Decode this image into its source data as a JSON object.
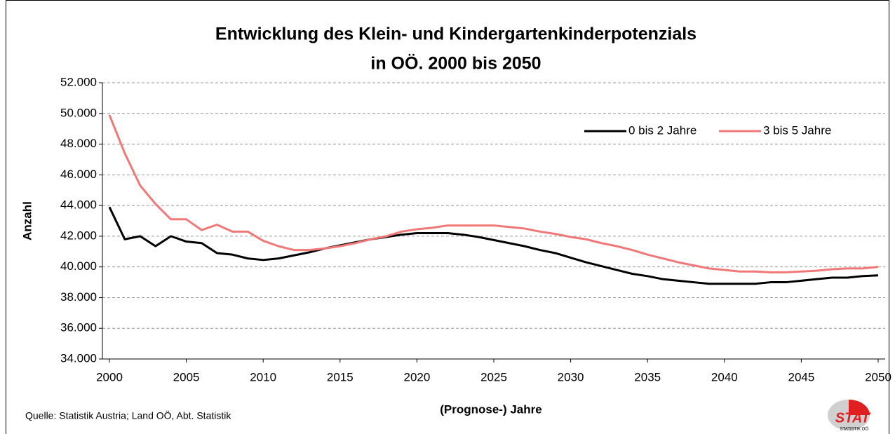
{
  "chart_data": {
    "type": "line",
    "title": [
      "Entwicklung des Klein- und Kindergartenkinderpotenzials",
      "in OÖ. 2000 bis 2050"
    ],
    "x_label": "(Prognose-) Jahre",
    "y_label": "Anzahl",
    "source": "Quelle: Statistik Austria; Land OÖ, Abt. Statistik",
    "logo": "STAT",
    "logo_sub": "STATISTIK OÖ",
    "x": [
      2000,
      2001,
      2002,
      2003,
      2004,
      2005,
      2006,
      2007,
      2008,
      2009,
      2010,
      2011,
      2012,
      2013,
      2014,
      2015,
      2016,
      2017,
      2018,
      2019,
      2020,
      2021,
      2022,
      2023,
      2024,
      2025,
      2026,
      2027,
      2028,
      2029,
      2030,
      2031,
      2032,
      2033,
      2034,
      2035,
      2036,
      2037,
      2038,
      2039,
      2040,
      2041,
      2042,
      2043,
      2044,
      2045,
      2046,
      2047,
      2048,
      2049,
      2050
    ],
    "series": [
      {
        "name": "0 bis 2 Jahre",
        "color": "#000000",
        "values": [
          43900,
          41800,
          42000,
          41350,
          42000,
          41650,
          41550,
          40900,
          40800,
          40550,
          40450,
          40550,
          40750,
          40950,
          41200,
          41400,
          41600,
          41800,
          41950,
          42100,
          42200,
          42200,
          42200,
          42100,
          41950,
          41750,
          41550,
          41350,
          41100,
          40900,
          40600,
          40300,
          40050,
          39800,
          39550,
          39400,
          39200,
          39100,
          39000,
          38900,
          38900,
          38900,
          38900,
          39000,
          39000,
          39100,
          39200,
          39300,
          39300,
          39400,
          39450
        ]
      },
      {
        "name": "3 bis 5 Jahre",
        "color": "#f07878",
        "values": [
          49900,
          47400,
          45300,
          44100,
          43100,
          43100,
          42400,
          42750,
          42300,
          42300,
          41700,
          41350,
          41100,
          41100,
          41200,
          41350,
          41550,
          41800,
          42000,
          42300,
          42450,
          42550,
          42700,
          42700,
          42700,
          42700,
          42600,
          42500,
          42300,
          42150,
          41950,
          41800,
          41550,
          41350,
          41100,
          40800,
          40550,
          40300,
          40100,
          39900,
          39800,
          39700,
          39700,
          39650,
          39650,
          39700,
          39750,
          39850,
          39900,
          39900,
          40000
        ]
      }
    ],
    "xlim": [
      2000,
      2050
    ],
    "xticks": [
      2000,
      2005,
      2010,
      2015,
      2020,
      2025,
      2030,
      2035,
      2040,
      2045,
      2050
    ],
    "ylim": [
      34000,
      52000
    ],
    "yticks": [
      {
        "value": 34000,
        "label": "34.000"
      },
      {
        "value": 36000,
        "label": "36.000"
      },
      {
        "value": 38000,
        "label": "38.000"
      },
      {
        "value": 40000,
        "label": "40.000"
      },
      {
        "value": 42000,
        "label": "42.000"
      },
      {
        "value": 44000,
        "label": "44.000"
      },
      {
        "value": 46000,
        "label": "46.000"
      },
      {
        "value": 48000,
        "label": "48.000"
      },
      {
        "value": 50000,
        "label": "50.000"
      },
      {
        "value": 52000,
        "label": "52.000"
      }
    ],
    "grid": true,
    "legend": "top-right"
  }
}
